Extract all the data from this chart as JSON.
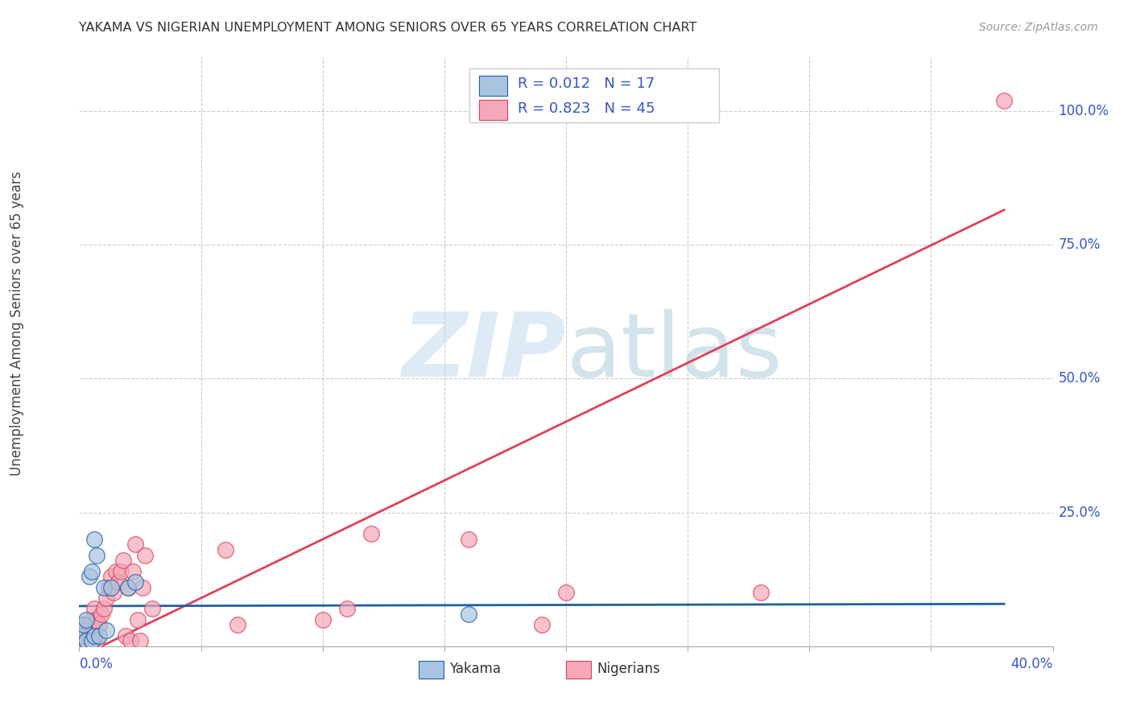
{
  "title": "YAKAMA VS NIGERIAN UNEMPLOYMENT AMONG SENIORS OVER 65 YEARS CORRELATION CHART",
  "source": "Source: ZipAtlas.com",
  "ylabel": "Unemployment Among Seniors over 65 years",
  "xlim": [
    0.0,
    0.4
  ],
  "ylim": [
    0.0,
    1.1
  ],
  "yakama_color": "#a8c4e0",
  "nigerian_color": "#f4a8b8",
  "yakama_line_color": "#2060a0",
  "nigerian_line_color": "#e0405a",
  "background_color": "#ffffff",
  "grid_color": "#cccccc",
  "legend_color": "#3355cc",
  "yakama_R": 0.012,
  "yakama_N": 17,
  "nigerian_R": 0.823,
  "nigerian_N": 45,
  "yakama_scatter_x": [
    0.001,
    0.002,
    0.003,
    0.003,
    0.004,
    0.005,
    0.005,
    0.006,
    0.006,
    0.007,
    0.008,
    0.01,
    0.011,
    0.013,
    0.02,
    0.023,
    0.16
  ],
  "yakama_scatter_y": [
    0.02,
    0.04,
    0.01,
    0.05,
    0.13,
    0.14,
    0.01,
    0.02,
    0.2,
    0.17,
    0.02,
    0.11,
    0.03,
    0.11,
    0.11,
    0.12,
    0.06
  ],
  "nigerian_scatter_x": [
    0.001,
    0.001,
    0.002,
    0.002,
    0.003,
    0.003,
    0.004,
    0.004,
    0.005,
    0.005,
    0.006,
    0.006,
    0.007,
    0.007,
    0.008,
    0.009,
    0.01,
    0.011,
    0.012,
    0.013,
    0.014,
    0.015,
    0.016,
    0.017,
    0.018,
    0.019,
    0.02,
    0.021,
    0.022,
    0.023,
    0.024,
    0.025,
    0.026,
    0.027,
    0.03,
    0.06,
    0.065,
    0.1,
    0.11,
    0.12,
    0.16,
    0.19,
    0.2,
    0.28,
    0.38
  ],
  "nigerian_scatter_y": [
    0.01,
    0.03,
    0.02,
    0.04,
    0.01,
    0.03,
    0.02,
    0.04,
    0.01,
    0.05,
    0.03,
    0.07,
    0.01,
    0.05,
    0.04,
    0.06,
    0.07,
    0.09,
    0.11,
    0.13,
    0.1,
    0.14,
    0.12,
    0.14,
    0.16,
    0.02,
    0.11,
    0.01,
    0.14,
    0.19,
    0.05,
    0.01,
    0.11,
    0.17,
    0.07,
    0.18,
    0.04,
    0.05,
    0.07,
    0.21,
    0.2,
    0.04,
    0.1,
    0.1,
    1.02
  ],
  "yakama_trend_x": [
    0.0,
    0.38
  ],
  "yakama_trend_y": [
    0.075,
    0.079
  ],
  "nigerian_trend_x": [
    0.0,
    0.38
  ],
  "nigerian_trend_y": [
    -0.02,
    0.815
  ]
}
